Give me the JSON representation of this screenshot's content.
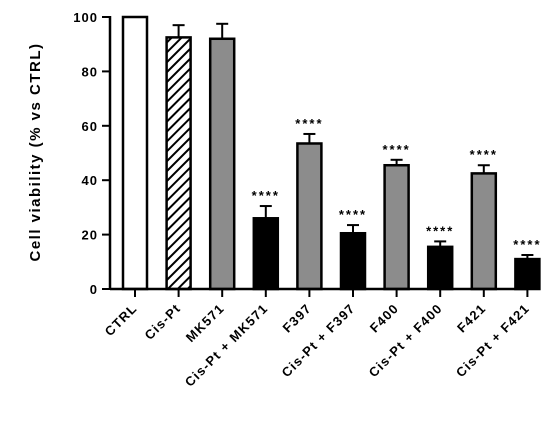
{
  "chart_data": {
    "type": "bar",
    "title": "",
    "xlabel": "",
    "ylabel": "Cell viability (% vs CTRL)",
    "ylim": [
      0,
      100
    ],
    "yticks": [
      0,
      20,
      40,
      60,
      80,
      100
    ],
    "grid": false,
    "legend": "none",
    "categories": [
      "CTRL",
      "Cis-Pt",
      "MK571",
      "Cis-Pt + MK571",
      "F397",
      "Cis-Pt + F397",
      "F400",
      "Cis-Pt + F400",
      "F421",
      "Cis-Pt + F421"
    ],
    "values": [
      100,
      92.5,
      92,
      26,
      53.5,
      20.5,
      45.5,
      15.5,
      42.5,
      11
    ],
    "errors": [
      0,
      4.5,
      5.5,
      4.5,
      3.5,
      3,
      2,
      2,
      3,
      1.5
    ],
    "significance": [
      "",
      "",
      "",
      "****",
      "****",
      "****",
      "****",
      "****",
      "****",
      "****"
    ],
    "fills": [
      "white",
      "hatched",
      "#8c8c8c",
      "#000000",
      "#8c8c8c",
      "#000000",
      "#8c8c8c",
      "#000000",
      "#8c8c8c",
      "#000000"
    ]
  }
}
